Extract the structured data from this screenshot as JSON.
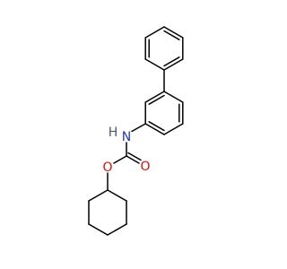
{
  "atoms": [
    {
      "label": "H"
    },
    {
      "label": "N"
    },
    {
      "label": "O"
    },
    {
      "label": "O"
    }
  ]
}
